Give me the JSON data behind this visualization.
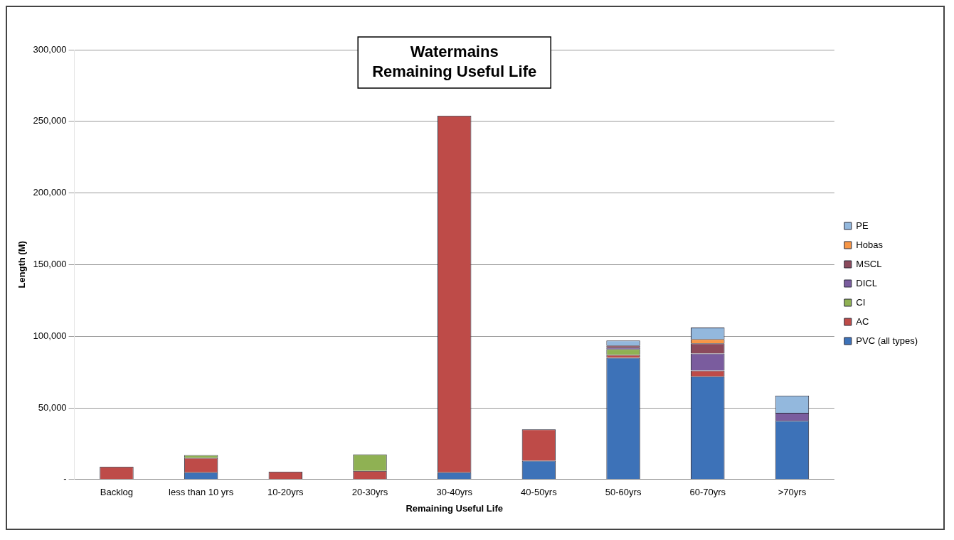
{
  "chart_data": {
    "type": "bar",
    "stacked": true,
    "title": "Watermains\nRemaining Useful Life",
    "xlabel": "Remaining Useful Life",
    "ylabel": "Length (M)",
    "categories": [
      "Backlog",
      "less than 10 yrs",
      "10-20yrs",
      "20-30yrs",
      "30-40yrs",
      "40-50yrs",
      "50-60yrs",
      "60-70yrs",
      ">70yrs"
    ],
    "series": [
      {
        "name": "PVC (all types)",
        "color": "#3d72b8",
        "values": [
          null,
          5000,
          null,
          null,
          5000,
          13000,
          85000,
          72000,
          41000
        ]
      },
      {
        "name": "AC",
        "color": "#be4b48",
        "values": [
          9000,
          10000,
          5500,
          6000,
          249000,
          22000,
          2000,
          4000,
          0
        ]
      },
      {
        "name": "CI",
        "color": "#8fb153",
        "values": [
          0,
          2000,
          0,
          11500,
          0,
          0,
          4000,
          0,
          0
        ]
      },
      {
        "name": "DICL",
        "color": "#7a5c9e",
        "values": [
          0,
          0,
          0,
          0,
          0,
          0,
          1000,
          12000,
          5500
        ]
      },
      {
        "name": "MSCL",
        "color": "#8b4a5c",
        "values": [
          0,
          0,
          0,
          0,
          0,
          0,
          1500,
          7000,
          0
        ]
      },
      {
        "name": "Hobas",
        "color": "#f79646",
        "values": [
          0,
          0,
          0,
          0,
          0,
          0,
          0,
          3000,
          0
        ]
      },
      {
        "name": "PE",
        "color": "#93b8dd",
        "values": [
          0,
          0,
          0,
          0,
          0,
          0,
          3500,
          8000,
          12000
        ]
      }
    ],
    "ylim": [
      0,
      300000
    ],
    "yticks": [
      {
        "value": 0,
        "label": "-"
      },
      {
        "value": 50000,
        "label": "50,000"
      },
      {
        "value": 100000,
        "label": "100,000"
      },
      {
        "value": 150000,
        "label": "150,000"
      },
      {
        "value": 200000,
        "label": "200,000"
      },
      {
        "value": 250000,
        "label": "250,000"
      },
      {
        "value": 300000,
        "label": "300,000"
      }
    ],
    "grid": "y",
    "legend": "right"
  }
}
